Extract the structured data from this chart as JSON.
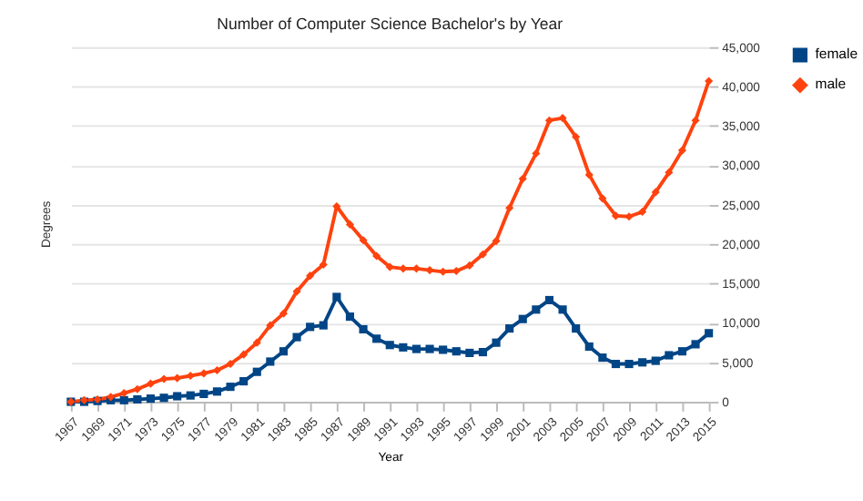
{
  "chart_data": {
    "type": "line",
    "title": "Number of Computer Science Bachelor's by Year",
    "xlabel": "Year",
    "ylabel": "Degrees",
    "x": [
      1967,
      1968,
      1969,
      1970,
      1971,
      1972,
      1973,
      1974,
      1975,
      1976,
      1977,
      1978,
      1979,
      1980,
      1981,
      1982,
      1983,
      1984,
      1985,
      1986,
      1987,
      1988,
      1989,
      1990,
      1991,
      1992,
      1993,
      1994,
      1995,
      1996,
      1997,
      1998,
      1999,
      2000,
      2001,
      2002,
      2003,
      2004,
      2005,
      2006,
      2007,
      2008,
      2009,
      2010,
      2011,
      2012,
      2013,
      2014,
      2015
    ],
    "xlim": [
      1967,
      2015
    ],
    "xticks": [
      1967,
      1969,
      1971,
      1973,
      1975,
      1977,
      1979,
      1981,
      1983,
      1985,
      1987,
      1989,
      1991,
      1993,
      1995,
      1997,
      1999,
      2001,
      2003,
      2005,
      2007,
      2009,
      2011,
      2013,
      2015
    ],
    "ylim": [
      0,
      45000
    ],
    "yticks": [
      {
        "value": 0,
        "label": "0"
      },
      {
        "value": 5000,
        "label": "5,000"
      },
      {
        "value": 10000,
        "label": "10,000"
      },
      {
        "value": 15000,
        "label": "15,000"
      },
      {
        "value": 20000,
        "label": "20,000"
      },
      {
        "value": 25000,
        "label": "25,000"
      },
      {
        "value": 30000,
        "label": "30,000"
      },
      {
        "value": 35000,
        "label": "35,000"
      },
      {
        "value": 40000,
        "label": "40,000"
      },
      {
        "value": 45000,
        "label": "45,000"
      }
    ],
    "grid": "y",
    "legend": "right",
    "series": [
      {
        "name": "female",
        "color": "#004586",
        "marker": "square",
        "line_style": "solid",
        "values": [
          0,
          0,
          100,
          200,
          200,
          300,
          400,
          500,
          700,
          800,
          1000,
          1300,
          1900,
          2600,
          3800,
          5100,
          6400,
          8200,
          9500,
          9700,
          13300,
          10800,
          9200,
          8000,
          7200,
          6900,
          6700,
          6700,
          6600,
          6400,
          6200,
          6300,
          7500,
          9300,
          10500,
          11700,
          12900,
          11700,
          9300,
          7000,
          5600,
          4800,
          4800,
          5000,
          5200,
          5900,
          6400,
          7300,
          8700
        ]
      },
      {
        "name": "male",
        "color": "#ff420e",
        "marker": "diamond",
        "line_style": "solid",
        "values": [
          0,
          200,
          300,
          600,
          1100,
          1600,
          2300,
          2900,
          3000,
          3300,
          3600,
          4000,
          4800,
          6000,
          7500,
          9700,
          11200,
          14000,
          16000,
          17400,
          24800,
          22500,
          20500,
          18500,
          17100,
          16900,
          16900,
          16700,
          16500,
          16600,
          17300,
          18700,
          20400,
          24600,
          28300,
          31500,
          35700,
          36000,
          33600,
          28800,
          25800,
          23600,
          23500,
          24100,
          26600,
          29100,
          31900,
          35700,
          40700
        ]
      }
    ]
  }
}
